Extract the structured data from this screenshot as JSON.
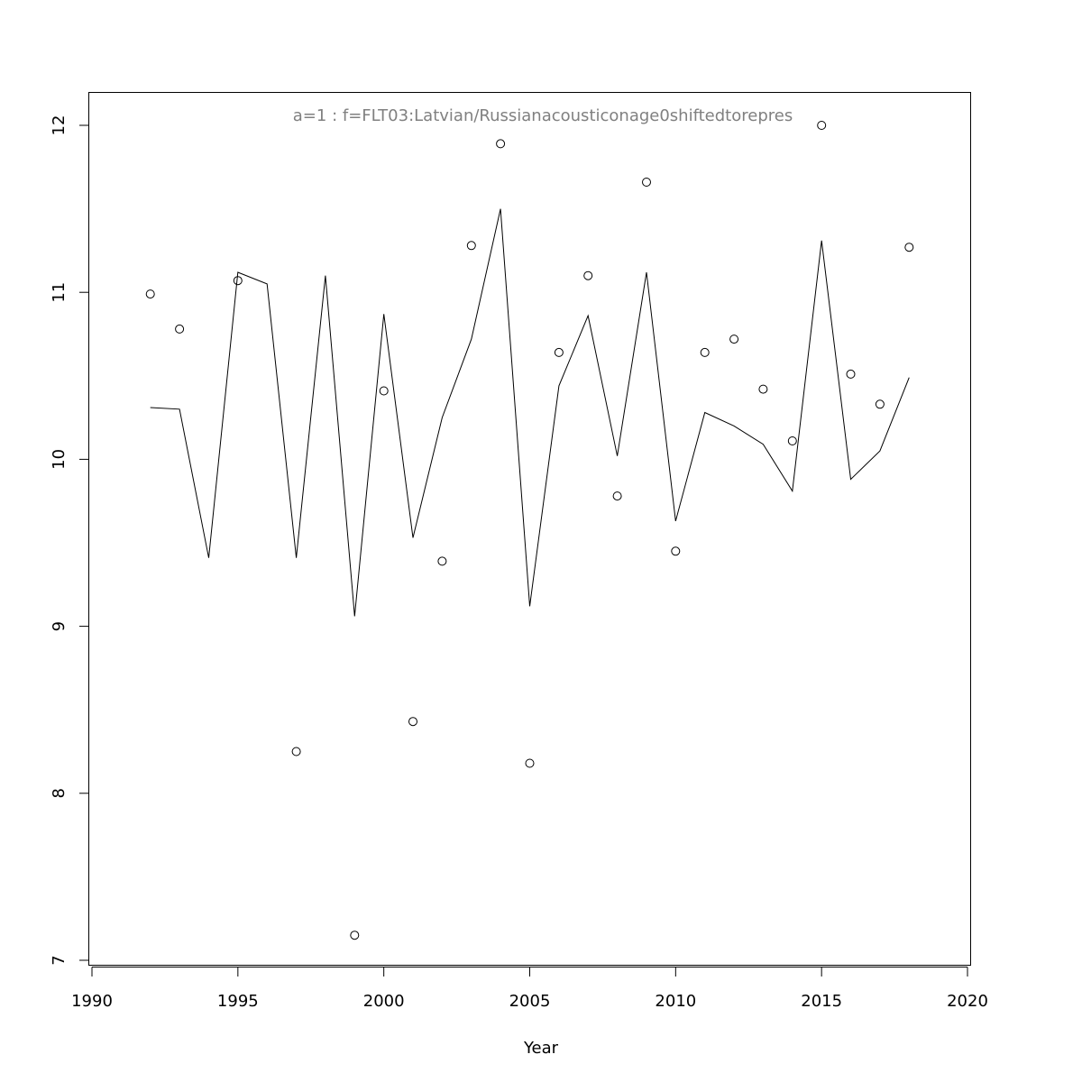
{
  "chart_data": {
    "type": "scatter",
    "title": "a=1  :  f=FLT03:Latvian/Russianacousticonage0shiftedtorepres",
    "xlabel": "Year",
    "ylabel": "",
    "xlim": [
      1990,
      2020
    ],
    "ylim": [
      7,
      12
    ],
    "xticks": [
      1990,
      1995,
      2000,
      2005,
      2010,
      2015,
      2020
    ],
    "yticks": [
      7,
      8,
      9,
      10,
      11,
      12
    ],
    "grid": false,
    "series": [
      {
        "kind": "points",
        "marker": "open-circle",
        "color": "#000000",
        "x": [
          1992,
          1993,
          1995,
          1997,
          1999,
          2000,
          2001,
          2002,
          2003,
          2004,
          2005,
          2006,
          2007,
          2008,
          2009,
          2010,
          2011,
          2012,
          2013,
          2014,
          2015,
          2016,
          2017,
          2018
        ],
        "y": [
          10.99,
          10.78,
          11.07,
          8.25,
          7.15,
          10.41,
          8.43,
          9.39,
          11.28,
          11.89,
          8.18,
          10.64,
          11.1,
          9.78,
          11.66,
          9.45,
          10.64,
          10.72,
          10.42,
          10.11,
          12.0,
          10.51,
          10.33,
          11.27
        ]
      },
      {
        "kind": "line",
        "color": "#000000",
        "x": [
          1992,
          1993,
          1994,
          1995,
          1996,
          1997,
          1998,
          1999,
          2000,
          2001,
          2002,
          2003,
          2004,
          2005,
          2006,
          2007,
          2008,
          2009,
          2010,
          2011,
          2012,
          2013,
          2014,
          2015,
          2016,
          2017,
          2018
        ],
        "y": [
          10.31,
          10.3,
          9.41,
          11.12,
          11.05,
          9.41,
          11.1,
          9.06,
          10.87,
          9.53,
          10.25,
          10.72,
          11.5,
          9.12,
          10.44,
          10.86,
          10.02,
          11.12,
          9.63,
          10.28,
          10.2,
          10.09,
          9.81,
          11.31,
          9.88,
          10.05,
          10.49
        ]
      }
    ]
  }
}
